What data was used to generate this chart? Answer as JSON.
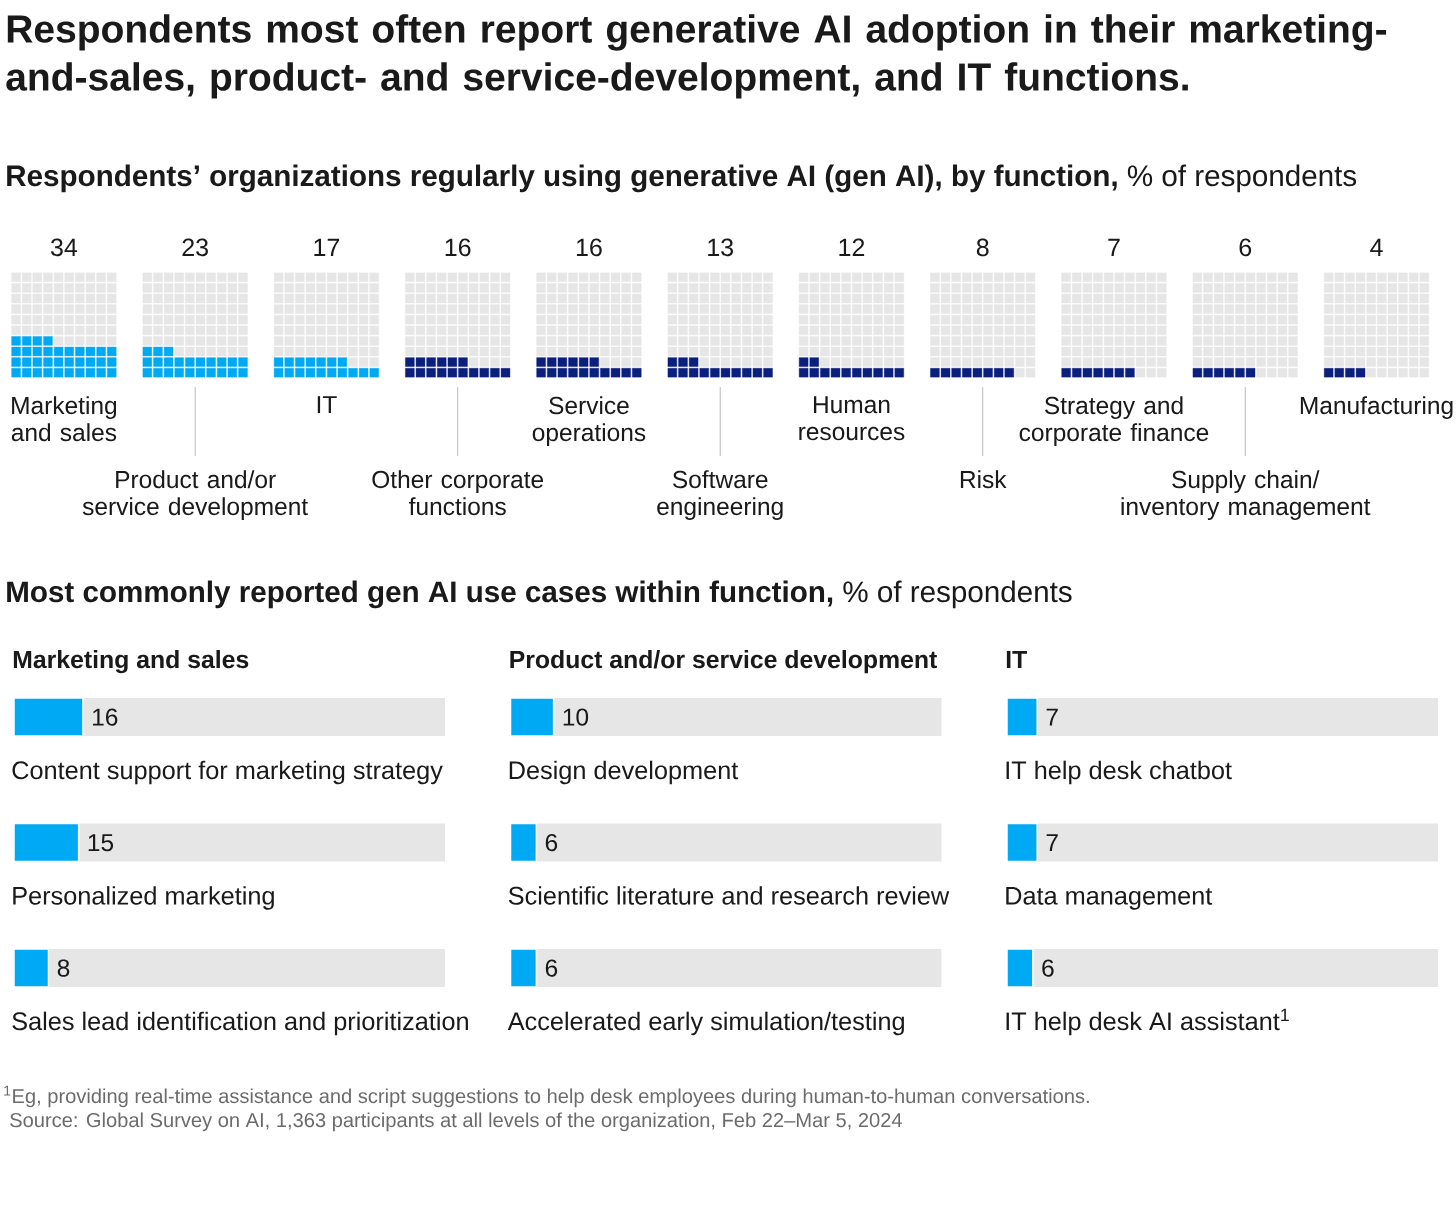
{
  "chart_data": [
    {
      "type": "other",
      "title": "Respondents most often report generative AI adoption in their marketing-and-sales, product- and service-development, and IT functions.",
      "subtitle": "**Respondents’ organizations regularly using generative AI (gen AI), by function,** % of respondents",
      "categories": [
        "Marketing and sales",
        "Product and/or service development",
        "IT",
        "Other corporate functions",
        "Service operations",
        "Software engineering",
        "Human resources",
        "Risk",
        "Strategy and corporate finance",
        "Supply chain/inventory management",
        "Manufacturing"
      ],
      "values": [
        34,
        23,
        17,
        16,
        16,
        13,
        12,
        8,
        7,
        6,
        4
      ],
      "colors": [
        "#00a9f4",
        "#00a9f4",
        "#00a9f4",
        "#0b1f7c",
        "#0b1f7c",
        "#0b1f7c",
        "#0b1f7c",
        "#0b1f7c",
        "#0b1f7c",
        "#0b1f7c",
        "#0b1f7c"
      ],
      "data_labels": true
    },
    {
      "type": "bar",
      "orientation": "horizontal",
      "subtitle": "**Most commonly reported gen AI use cases within function,** % of respondents",
      "title": "Marketing and sales",
      "categories": [
        "Content support for marketing strategy",
        "Personalized marketing",
        "Sales lead identification and prioritization"
      ],
      "values": [
        16,
        15,
        8
      ],
      "color": "#00a9f4",
      "xlim": [
        0,
        100
      ],
      "tick_labels": "y",
      "data_labels": true
    },
    {
      "type": "bar",
      "orientation": "horizontal",
      "title": "Product and/or service development",
      "categories": [
        "Design development",
        "Scientific literature and research review",
        "Accelerated early simulation/testing"
      ],
      "values": [
        10,
        6,
        6
      ],
      "color": "#00a9f4",
      "xlim": [
        0,
        100
      ],
      "tick_labels": "y",
      "data_labels": true
    },
    {
      "type": "bar",
      "orientation": "horizontal",
      "title": "IT",
      "categories": [
        "IT help desk chatbot",
        "Data management",
        "IT help desk AI assistant$^{1}$"
      ],
      "values": [
        7,
        7,
        6
      ],
      "color": "#00a9f4",
      "xlim": [
        0,
        100
      ],
      "tick_labels": "y",
      "data_labels": true,
      "annotations": [
        "$^{1}$Eg, providing real-time assistance and script suggestions to help desk employees during human-to-human conversations.",
        "Source: Global Survey on AI, 1,363 participants at all levels of the organization, Feb 22–Mar 5, 2024"
      ]
    }
  ]
}
